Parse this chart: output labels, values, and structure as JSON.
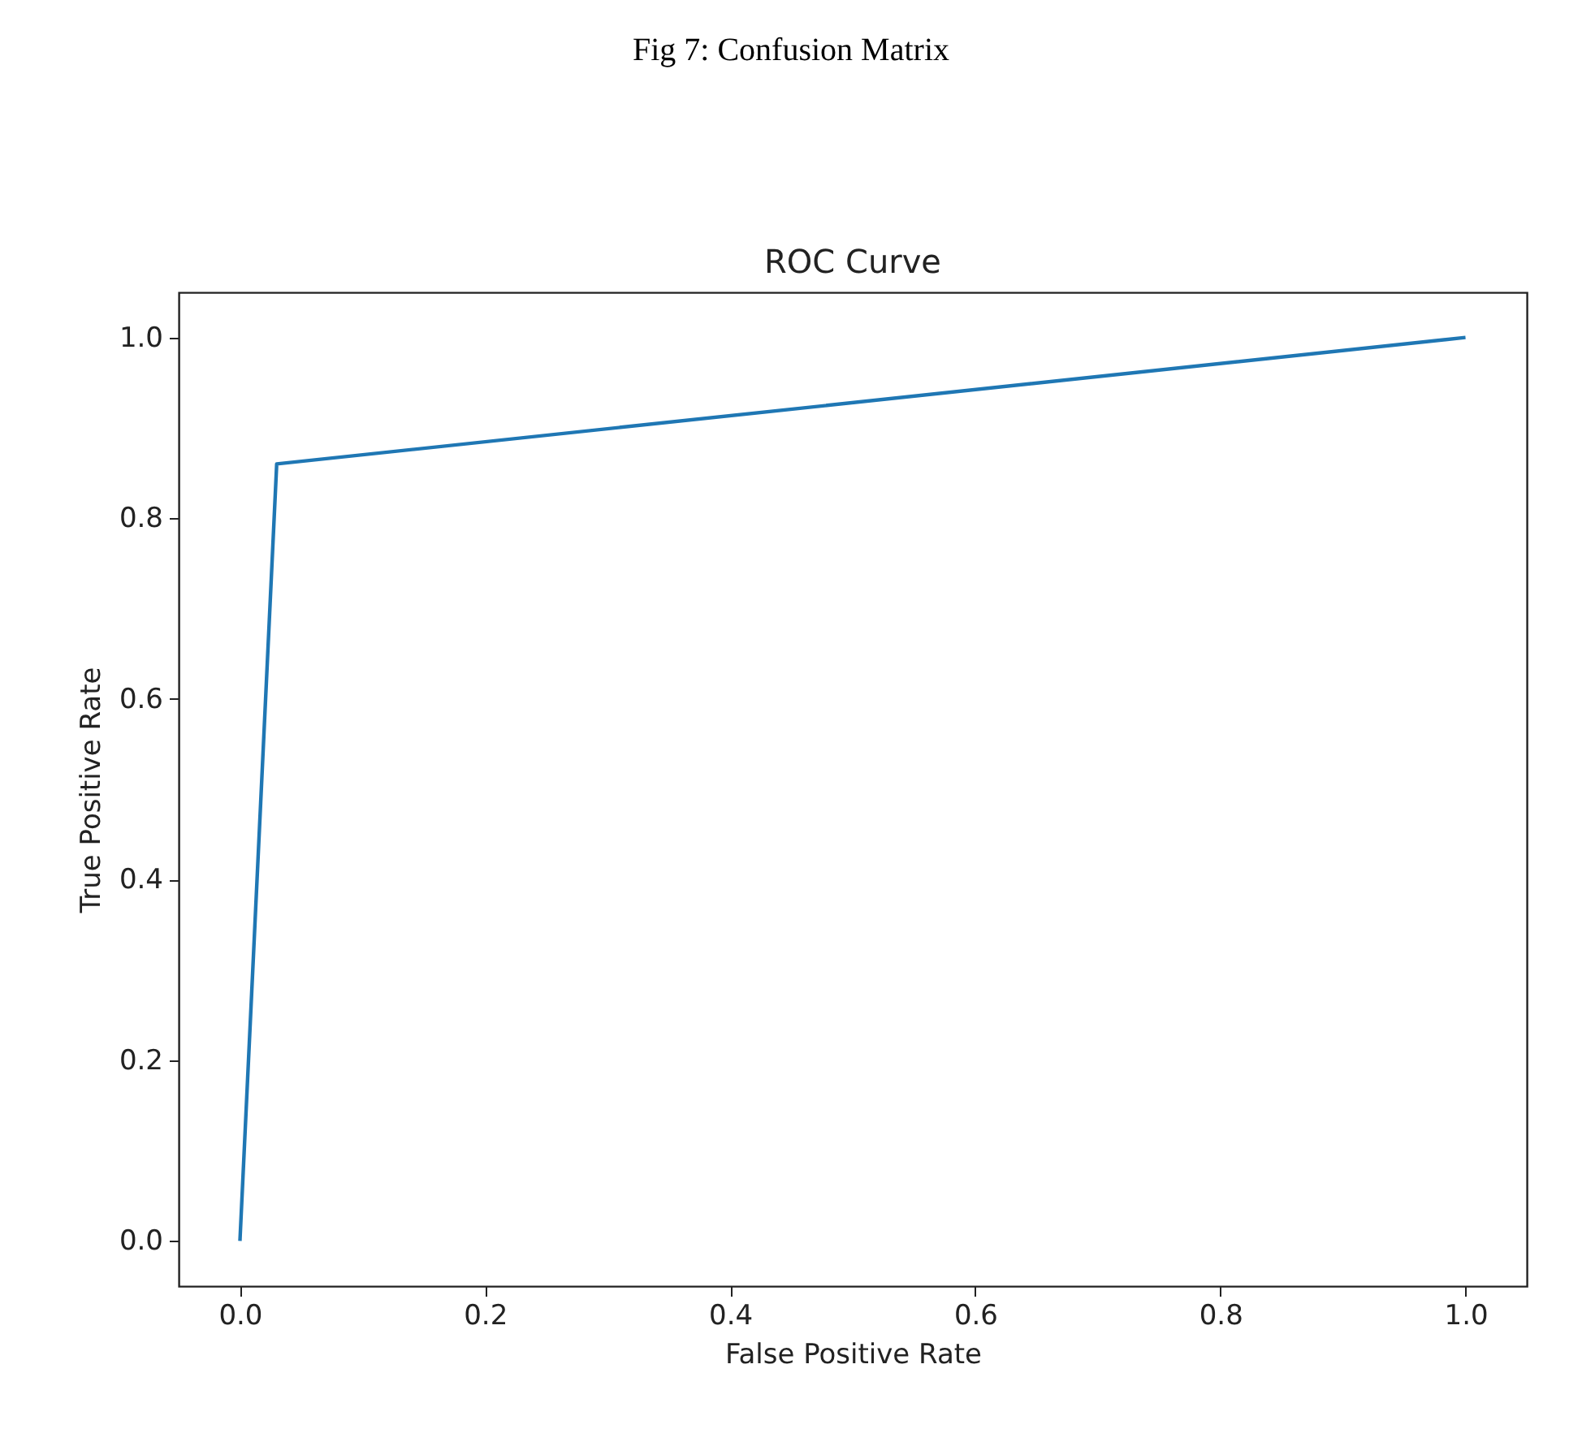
{
  "chart_data": {
    "type": "line",
    "title": "ROC Curve",
    "xlabel": "False Positive Rate",
    "ylabel": "True Positive Rate",
    "annotations": [
      "Fig 7: Confusion Matrix"
    ],
    "x": [
      0,
      0.03,
      1
    ],
    "series": [
      {
        "color": "#1f77b4",
        "values": [
          0,
          0.86,
          1
        ]
      }
    ],
    "xlim": [
      -0.05,
      1.05
    ],
    "ylim": [
      -0.05,
      1.05
    ],
    "xticks": [
      {
        "value": 0,
        "label": "0.0"
      },
      0.2,
      0.4,
      0.6,
      0.8,
      {
        "value": 1,
        "label": "1.0"
      }
    ],
    "yticks": [
      {
        "value": 0,
        "label": "0.0"
      },
      0.2,
      0.4,
      0.6,
      0.8,
      {
        "value": 1,
        "label": "1.0"
      }
    ],
    "grid": false
  }
}
